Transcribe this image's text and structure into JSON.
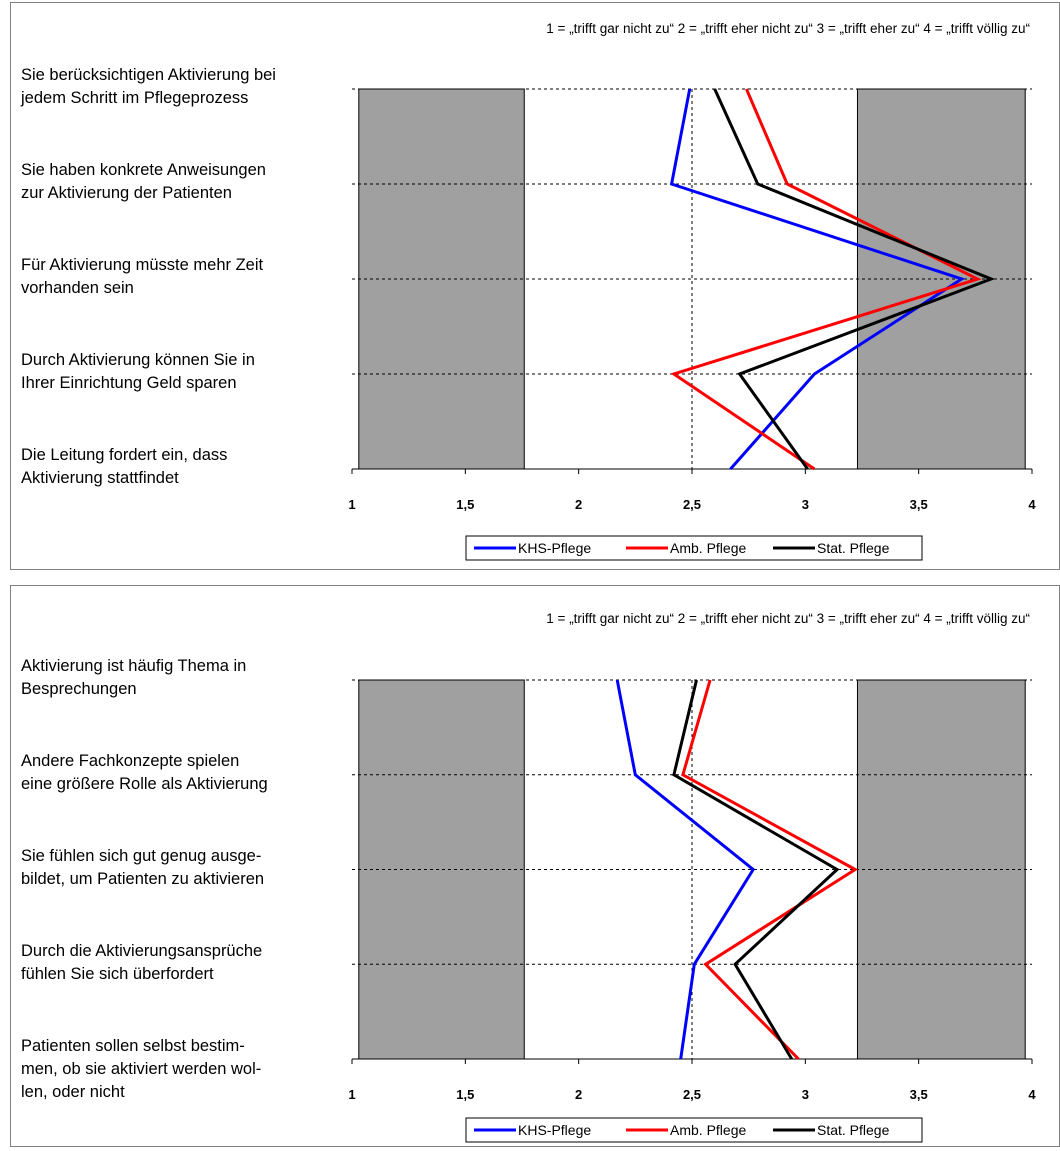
{
  "colors": {
    "shade": "#a0a0a0",
    "series": [
      "#0000ff",
      "#ff0000",
      "#000000"
    ]
  },
  "chart_data": [
    {
      "type": "line",
      "orientation": "horizontal-profile",
      "scale_note": "1 = „trifft gar nicht zu“ 2 = „trifft eher nicht zu“ 3 = „trifft eher zu“ 4 = „trifft völlig zu“",
      "categories": [
        [
          "Sie berücksichtigen Aktivierung bei",
          "jedem Schritt im Pflegeprozess"
        ],
        [
          "Sie haben konkrete Anweisungen",
          "zur Aktivierung der Patienten"
        ],
        [
          "Für Aktivierung müsste mehr Zeit",
          "vorhanden sein"
        ],
        [
          "Durch Aktivierung können Sie in",
          "Ihrer Einrichtung Geld sparen"
        ],
        [
          "Die Leitung fordert ein, dass",
          "Aktivierung stattfindet"
        ]
      ],
      "xlim": [
        1,
        4
      ],
      "xticks": [
        "1",
        "1,5",
        "2",
        "2,5",
        "3",
        "3,5",
        "4"
      ],
      "shaded_bands": [
        [
          1.03,
          1.76
        ],
        [
          3.23,
          3.97
        ]
      ],
      "reference_line": 2.5,
      "series": [
        {
          "name": "KHS-Pflege",
          "values": [
            2.49,
            2.41,
            3.69,
            3.04,
            2.67
          ]
        },
        {
          "name": "Amb. Pflege",
          "values": [
            2.74,
            2.92,
            3.76,
            2.42,
            3.04
          ]
        },
        {
          "name": "Stat. Pflege",
          "values": [
            2.6,
            2.79,
            3.82,
            2.71,
            3.01
          ]
        }
      ],
      "legend": "bottom-center"
    },
    {
      "type": "line",
      "orientation": "horizontal-profile",
      "scale_note": "1 = „trifft gar nicht zu“ 2 = „trifft eher nicht zu“ 3 = „trifft eher zu“ 4 = „trifft völlig zu“",
      "categories": [
        [
          "Aktivierung ist häufig Thema in",
          "Besprechungen"
        ],
        [
          "Andere Fachkonzepte spielen",
          "eine größere Rolle als Aktivierung"
        ],
        [
          "Sie fühlen sich gut genug ausge-",
          "bildet, um Patienten zu aktivieren"
        ],
        [
          "Durch die Aktivierungsansprüche",
          "fühlen Sie sich überfordert"
        ],
        [
          "Patienten sollen selbst bestim-",
          "men, ob sie aktiviert werden wol-",
          "len, oder nicht"
        ]
      ],
      "xlim": [
        1,
        4
      ],
      "xticks": [
        "1",
        "1,5",
        "2",
        "2,5",
        "3",
        "3,5",
        "4"
      ],
      "shaded_bands": [
        [
          1.03,
          1.76
        ],
        [
          3.23,
          3.97
        ]
      ],
      "reference_line": 2.5,
      "series": [
        {
          "name": "KHS-Pflege",
          "values": [
            2.17,
            2.25,
            2.77,
            2.51,
            2.45
          ]
        },
        {
          "name": "Amb. Pflege",
          "values": [
            2.58,
            2.46,
            3.22,
            2.56,
            2.97
          ]
        },
        {
          "name": "Stat. Pflege",
          "values": [
            2.52,
            2.42,
            3.14,
            2.69,
            2.94
          ]
        }
      ],
      "legend": "bottom-center"
    }
  ]
}
